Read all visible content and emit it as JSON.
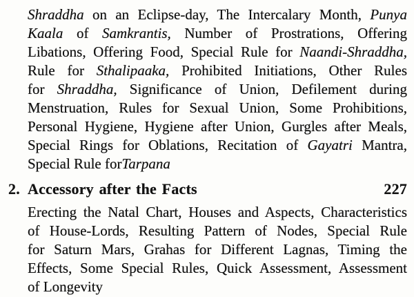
{
  "page": {
    "bg": "#fdfdfb",
    "ink": "#131313"
  },
  "toc": {
    "chapter1_topics": {
      "lines": [
        [
          {
            "t": "Shraddha",
            "i": true
          },
          {
            "t": " on an Eclipse-day, The Intercalary Month, "
          },
          {
            "t": "Punya",
            "i": true
          }
        ],
        [
          {
            "t": "Kaala",
            "i": true
          },
          {
            "t": " of "
          },
          {
            "t": "Samkrantis,",
            "i": true
          },
          {
            "t": " Number of Prostrations, Offering"
          }
        ],
        [
          {
            "t": "Libations, Offering Food, Special Rule for "
          },
          {
            "t": "Naandi-Shraddha,",
            "i": true
          }
        ],
        [
          {
            "t": "Rule for "
          },
          {
            "t": "Sthalipaaka,",
            "i": true
          },
          {
            "t": " Prohibited Initiations, Other Rules"
          }
        ],
        [
          {
            "t": "for "
          },
          {
            "t": "Shraddha,",
            "i": true
          },
          {
            "t": " Significance of Union, Defilement during"
          }
        ],
        [
          {
            "t": "Menstruation, Rules for Sexual Union, Some Prohibitions,"
          }
        ],
        [
          {
            "t": "Personal Hygiene, Hygiene after Union, Gurgles after Meals,"
          }
        ],
        [
          {
            "t": "Special Rings for Oblations, Recitation of "
          },
          {
            "t": "Gayatri",
            "i": true
          },
          {
            "t": " Mantra,"
          }
        ],
        [
          {
            "t": "Special Rule for"
          },
          {
            "t": "Tarpana",
            "i": true
          }
        ]
      ]
    },
    "entry2": {
      "number": "2.",
      "title": "Accessory after the Facts",
      "page_number": "227"
    },
    "chapter2_topics": {
      "lines": [
        [
          {
            "t": "Erecting the Natal Chart, Houses and Aspects, Characteristics"
          }
        ],
        [
          {
            "t": "of House-Lords, Resulting Pattern of Nodes, Special Rule"
          }
        ],
        [
          {
            "t": "for Saturn Mars, Grahas for Different Lagnas, Timing the"
          }
        ],
        [
          {
            "t": "Effects, Some Special Rules, Quick Assessment, Assessment"
          }
        ],
        [
          {
            "t": "of Longevity"
          }
        ]
      ]
    }
  }
}
